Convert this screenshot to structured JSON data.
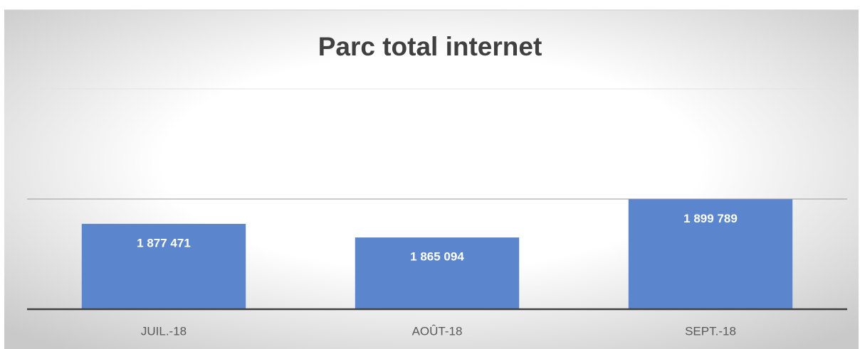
{
  "chart_data": {
    "type": "bar",
    "title": "Parc total internet",
    "categories": [
      "JUIL.-18",
      "AOÛT-18",
      "SEPT.-18"
    ],
    "values": [
      1877471,
      1865094,
      1899789
    ],
    "value_labels": [
      "1 877 471",
      "1 865 094",
      "1 899 789"
    ],
    "color": "#5b86cd",
    "ylim": [
      1800000,
      2000000
    ],
    "yticks": [
      1900000,
      2000000
    ],
    "grid": true
  }
}
